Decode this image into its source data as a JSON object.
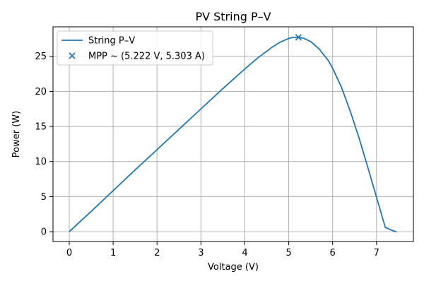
{
  "chart_data": {
    "type": "line",
    "title": "PV String P–V",
    "xlabel": "Voltage (V)",
    "ylabel": "Power (W)",
    "xlim": [
      -0.37,
      7.84
    ],
    "ylim": [
      -1.4,
      29.2
    ],
    "xticks": [
      0,
      1,
      2,
      3,
      4,
      5,
      6,
      7
    ],
    "yticks": [
      0,
      5,
      10,
      15,
      20,
      25
    ],
    "grid": true,
    "legend_position": "top-left",
    "series": [
      {
        "name": "String P–V",
        "kind": "line",
        "color": "#1f77b4",
        "x": [
          0,
          0.5,
          1,
          1.5,
          2,
          2.5,
          3,
          3.5,
          4,
          4.3,
          4.6,
          4.8,
          5.0,
          5.1,
          5.222,
          5.35,
          5.5,
          5.7,
          5.9,
          6.0,
          6.2,
          6.4,
          6.6,
          6.8,
          7.0,
          7.2,
          7.35,
          7.45
        ],
        "y": [
          0,
          2.9,
          5.85,
          8.8,
          11.7,
          14.6,
          17.5,
          20.4,
          23.2,
          24.8,
          26.2,
          27.0,
          27.55,
          27.7,
          27.7,
          27.55,
          27.1,
          26.0,
          24.4,
          23.3,
          20.6,
          17.2,
          13.4,
          9.2,
          4.9,
          0.6,
          0.2,
          0
        ]
      },
      {
        "name": "MPP ~ (5.222 V, 5.303 A)",
        "kind": "marker",
        "marker": "x",
        "color": "#1f77b4",
        "x": [
          5.222
        ],
        "y": [
          27.7
        ]
      }
    ]
  }
}
